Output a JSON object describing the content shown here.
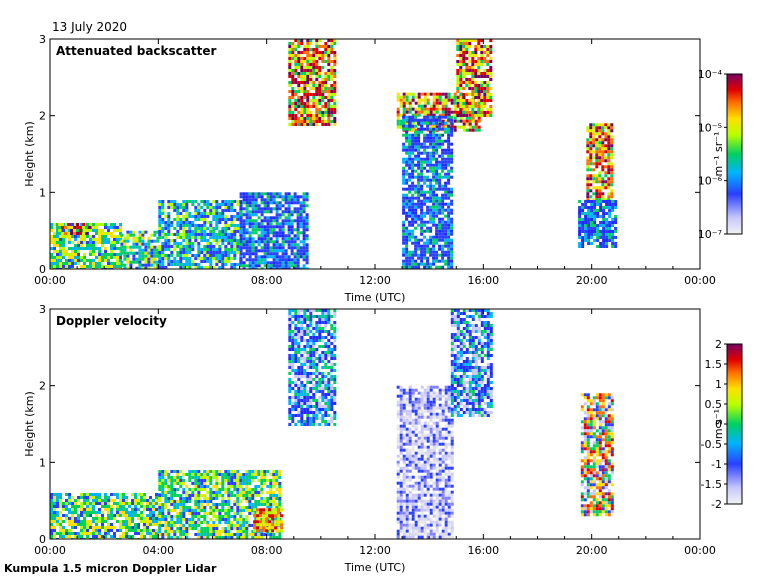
{
  "date": "13 July 2020",
  "footer": "Kumpula 1.5 micron Doppler Lidar",
  "chart_data": [
    {
      "type": "heatmap",
      "title": "Attenuated backscatter",
      "xlabel": "Time (UTC)",
      "ylabel": "Height (km)",
      "x_ticks": [
        "00:00",
        "04:00",
        "08:00",
        "12:00",
        "16:00",
        "20:00",
        "00:00"
      ],
      "y_ticks": [
        "0",
        "1",
        "2",
        "3"
      ],
      "xlim": [
        0,
        24
      ],
      "ylim": [
        0,
        3
      ],
      "colorbar": {
        "scale": "log",
        "unit": "m⁻¹ sr⁻¹",
        "ticks": [
          "10⁻⁷",
          "10⁻⁶",
          "10⁻⁵",
          "10⁻⁴"
        ],
        "range": [
          1e-07,
          0.0001
        ]
      },
      "regions": [
        {
          "x": [
            0.0,
            2.6
          ],
          "y": [
            0.0,
            0.6
          ],
          "level": "mid"
        },
        {
          "x": [
            0.3,
            1.5
          ],
          "y": [
            0.45,
            0.6
          ],
          "level": "high"
        },
        {
          "x": [
            2.6,
            4.0
          ],
          "y": [
            0.0,
            0.5
          ],
          "level": "mid"
        },
        {
          "x": [
            4.0,
            7.0
          ],
          "y": [
            0.0,
            0.9
          ],
          "level": "low-mid"
        },
        {
          "x": [
            7.0,
            9.5
          ],
          "y": [
            0.0,
            1.0
          ],
          "level": "low"
        },
        {
          "x": [
            8.8,
            10.5
          ],
          "y": [
            1.9,
            3.0
          ],
          "level": "high"
        },
        {
          "x": [
            12.8,
            15.8
          ],
          "y": [
            1.8,
            2.3
          ],
          "level": "high"
        },
        {
          "x": [
            13.0,
            14.8
          ],
          "y": [
            0.0,
            2.0
          ],
          "level": "low"
        },
        {
          "x": [
            15.0,
            16.3
          ],
          "y": [
            2.0,
            3.0
          ],
          "level": "high"
        },
        {
          "x": [
            19.8,
            20.7
          ],
          "y": [
            0.9,
            1.9
          ],
          "level": "high"
        },
        {
          "x": [
            19.5,
            20.9
          ],
          "y": [
            0.3,
            0.9
          ],
          "level": "low"
        }
      ]
    },
    {
      "type": "heatmap",
      "title": "Doppler velocity",
      "xlabel": "Time (UTC)",
      "ylabel": "Height (km)",
      "x_ticks": [
        "00:00",
        "04:00",
        "08:00",
        "12:00",
        "16:00",
        "20:00",
        "00:00"
      ],
      "y_ticks": [
        "0",
        "1",
        "2",
        "3"
      ],
      "xlim": [
        0,
        24
      ],
      "ylim": [
        0,
        3
      ],
      "colorbar": {
        "scale": "linear",
        "unit": "m s⁻¹",
        "ticks": [
          "-2",
          "-1.5",
          "-1",
          "-0.5",
          "0",
          "0.5",
          "1",
          "1.5",
          "2"
        ],
        "range": [
          -2,
          2
        ]
      },
      "regions": [
        {
          "x": [
            0.0,
            4.0
          ],
          "y": [
            0.0,
            0.6
          ],
          "level": "near-zero"
        },
        {
          "x": [
            4.0,
            8.5
          ],
          "y": [
            0.0,
            0.9
          ],
          "level": "near-zero"
        },
        {
          "x": [
            7.5,
            8.5
          ],
          "y": [
            0.1,
            0.4
          ],
          "level": "positive"
        },
        {
          "x": [
            8.8,
            10.5
          ],
          "y": [
            1.5,
            3.0
          ],
          "level": "negative"
        },
        {
          "x": [
            12.8,
            14.8
          ],
          "y": [
            0.0,
            2.0
          ],
          "level": "strong-negative"
        },
        {
          "x": [
            14.8,
            16.3
          ],
          "y": [
            1.6,
            3.0
          ],
          "level": "negative"
        },
        {
          "x": [
            19.6,
            20.8
          ],
          "y": [
            0.3,
            1.9
          ],
          "level": "mixed"
        }
      ]
    }
  ]
}
